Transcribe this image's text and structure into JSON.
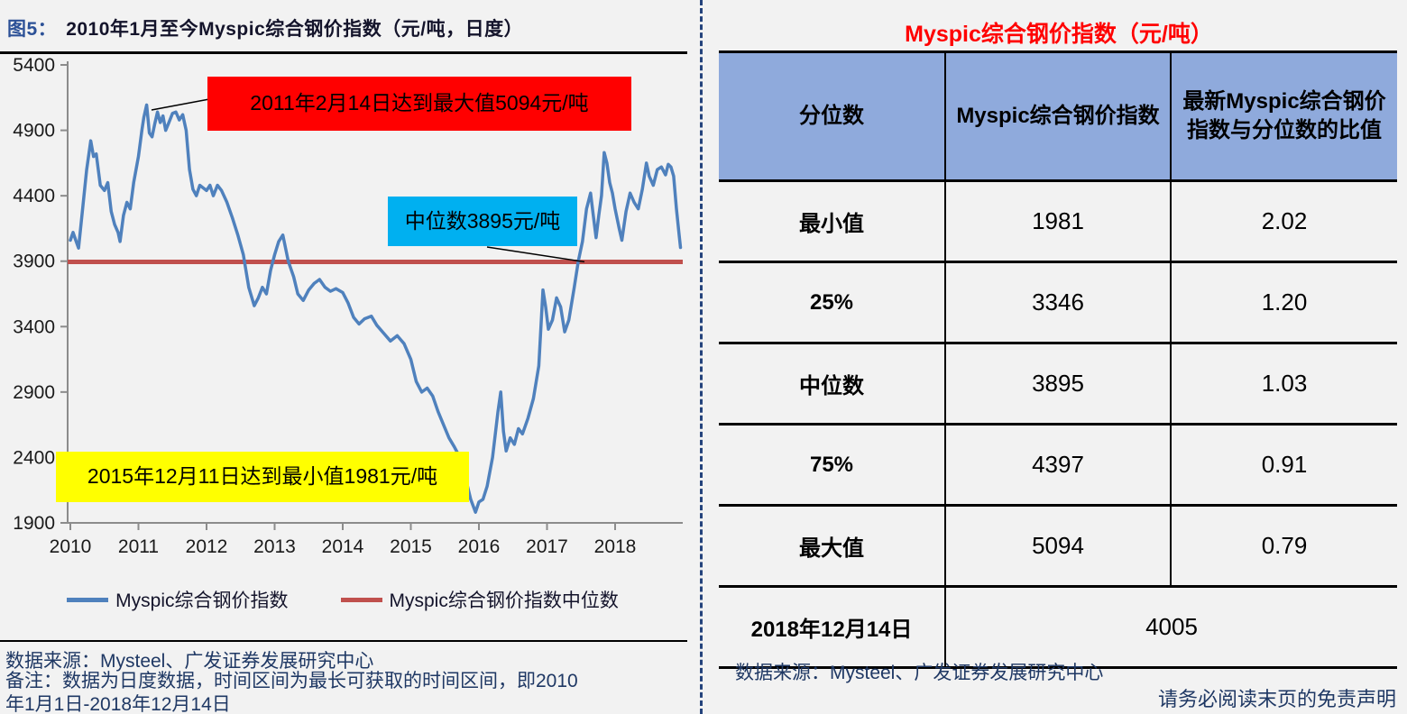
{
  "left_panel": {
    "figure_label": "图5：",
    "title": "2010年1月至今Myspic综合钢价指数（元/吨，日度）",
    "annotations": {
      "max": "2011年2月14日达到最大值5094元/吨",
      "median": "中位数3895元/吨",
      "min": "2015年12月11日达到最小值1981元/吨"
    },
    "legend": [
      {
        "label": "Myspic综合钢价指数",
        "color": "#4F81BD"
      },
      {
        "label": "Myspic综合钢价指数中位数",
        "color": "#C0504D"
      }
    ],
    "source": "数据来源：Mysteel、广发证券发展研究中心",
    "note": "备注：数据为日度数据，时间区间为最长可获取的时间区间，即2010年1月1日-2018年12月14日"
  },
  "chart_data": {
    "type": "line",
    "title": "2010年1月至今Myspic综合钢价指数（元/吨，日度）",
    "xlabel": "",
    "ylabel": "",
    "ylim": [
      1900,
      5400
    ],
    "y_ticks": [
      5400,
      4900,
      4400,
      3900,
      3400,
      2900,
      2400,
      1900
    ],
    "x_ticks": [
      2010,
      2011,
      2012,
      2013,
      2014,
      2015,
      2016,
      2017,
      2018
    ],
    "grid": false,
    "legend_position": "bottom",
    "median_value": 3895,
    "max_point": {
      "date": "2011-02-14",
      "value": 5094
    },
    "min_point": {
      "date": "2015-12-11",
      "value": 1981
    },
    "latest_point": {
      "date": "2018-12-14",
      "value": 4005
    },
    "series": [
      {
        "name": "Myspic综合钢价指数",
        "color": "#4F81BD",
        "points": [
          [
            2010.0,
            4060
          ],
          [
            2010.04,
            4120
          ],
          [
            2010.08,
            4060
          ],
          [
            2010.12,
            4000
          ],
          [
            2010.18,
            4300
          ],
          [
            2010.24,
            4600
          ],
          [
            2010.3,
            4820
          ],
          [
            2010.34,
            4700
          ],
          [
            2010.38,
            4720
          ],
          [
            2010.44,
            4480
          ],
          [
            2010.5,
            4440
          ],
          [
            2010.55,
            4500
          ],
          [
            2010.6,
            4280
          ],
          [
            2010.65,
            4180
          ],
          [
            2010.7,
            4120
          ],
          [
            2010.73,
            4050
          ],
          [
            2010.78,
            4250
          ],
          [
            2010.83,
            4350
          ],
          [
            2010.88,
            4300
          ],
          [
            2010.93,
            4500
          ],
          [
            2011.0,
            4700
          ],
          [
            2011.05,
            4900
          ],
          [
            2011.08,
            5000
          ],
          [
            2011.12,
            5094
          ],
          [
            2011.16,
            4880
          ],
          [
            2011.2,
            4850
          ],
          [
            2011.24,
            4950
          ],
          [
            2011.28,
            5040
          ],
          [
            2011.32,
            4960
          ],
          [
            2011.36,
            5010
          ],
          [
            2011.4,
            4900
          ],
          [
            2011.44,
            4950
          ],
          [
            2011.5,
            5030
          ],
          [
            2011.55,
            5040
          ],
          [
            2011.6,
            4980
          ],
          [
            2011.65,
            5020
          ],
          [
            2011.7,
            4900
          ],
          [
            2011.75,
            4600
          ],
          [
            2011.8,
            4450
          ],
          [
            2011.85,
            4400
          ],
          [
            2011.9,
            4480
          ],
          [
            2011.95,
            4460
          ],
          [
            2012.0,
            4440
          ],
          [
            2012.05,
            4480
          ],
          [
            2012.1,
            4400
          ],
          [
            2012.16,
            4480
          ],
          [
            2012.22,
            4440
          ],
          [
            2012.3,
            4350
          ],
          [
            2012.38,
            4230
          ],
          [
            2012.46,
            4100
          ],
          [
            2012.54,
            3950
          ],
          [
            2012.62,
            3700
          ],
          [
            2012.7,
            3560
          ],
          [
            2012.76,
            3620
          ],
          [
            2012.82,
            3700
          ],
          [
            2012.88,
            3650
          ],
          [
            2012.94,
            3830
          ],
          [
            2013.0,
            3950
          ],
          [
            2013.06,
            4050
          ],
          [
            2013.12,
            4100
          ],
          [
            2013.2,
            3900
          ],
          [
            2013.28,
            3780
          ],
          [
            2013.34,
            3650
          ],
          [
            2013.42,
            3600
          ],
          [
            2013.5,
            3680
          ],
          [
            2013.58,
            3730
          ],
          [
            2013.66,
            3760
          ],
          [
            2013.74,
            3700
          ],
          [
            2013.82,
            3670
          ],
          [
            2013.9,
            3690
          ],
          [
            2014.0,
            3660
          ],
          [
            2014.08,
            3580
          ],
          [
            2014.16,
            3470
          ],
          [
            2014.24,
            3420
          ],
          [
            2014.32,
            3460
          ],
          [
            2014.42,
            3480
          ],
          [
            2014.5,
            3410
          ],
          [
            2014.6,
            3350
          ],
          [
            2014.7,
            3290
          ],
          [
            2014.8,
            3330
          ],
          [
            2014.9,
            3270
          ],
          [
            2015.0,
            3150
          ],
          [
            2015.08,
            2980
          ],
          [
            2015.16,
            2900
          ],
          [
            2015.24,
            2930
          ],
          [
            2015.32,
            2870
          ],
          [
            2015.4,
            2750
          ],
          [
            2015.48,
            2650
          ],
          [
            2015.56,
            2550
          ],
          [
            2015.64,
            2480
          ],
          [
            2015.72,
            2400
          ],
          [
            2015.8,
            2250
          ],
          [
            2015.88,
            2080
          ],
          [
            2015.95,
            1981
          ],
          [
            2016.0,
            2060
          ],
          [
            2016.06,
            2080
          ],
          [
            2016.12,
            2180
          ],
          [
            2016.2,
            2400
          ],
          [
            2016.28,
            2750
          ],
          [
            2016.32,
            2900
          ],
          [
            2016.36,
            2600
          ],
          [
            2016.4,
            2450
          ],
          [
            2016.46,
            2550
          ],
          [
            2016.52,
            2500
          ],
          [
            2016.58,
            2620
          ],
          [
            2016.64,
            2580
          ],
          [
            2016.72,
            2700
          ],
          [
            2016.8,
            2850
          ],
          [
            2016.88,
            3100
          ],
          [
            2016.94,
            3680
          ],
          [
            2016.98,
            3550
          ],
          [
            2017.02,
            3380
          ],
          [
            2017.08,
            3450
          ],
          [
            2017.14,
            3620
          ],
          [
            2017.2,
            3550
          ],
          [
            2017.26,
            3360
          ],
          [
            2017.32,
            3450
          ],
          [
            2017.4,
            3700
          ],
          [
            2017.46,
            3900
          ],
          [
            2017.52,
            4050
          ],
          [
            2017.58,
            4300
          ],
          [
            2017.64,
            4420
          ],
          [
            2017.68,
            4250
          ],
          [
            2017.72,
            4080
          ],
          [
            2017.76,
            4250
          ],
          [
            2017.8,
            4400
          ],
          [
            2017.84,
            4730
          ],
          [
            2017.88,
            4650
          ],
          [
            2017.92,
            4500
          ],
          [
            2017.96,
            4420
          ],
          [
            2018.0,
            4300
          ],
          [
            2018.06,
            4150
          ],
          [
            2018.1,
            4060
          ],
          [
            2018.16,
            4280
          ],
          [
            2018.22,
            4420
          ],
          [
            2018.28,
            4350
          ],
          [
            2018.34,
            4300
          ],
          [
            2018.4,
            4450
          ],
          [
            2018.46,
            4650
          ],
          [
            2018.5,
            4550
          ],
          [
            2018.56,
            4480
          ],
          [
            2018.62,
            4600
          ],
          [
            2018.68,
            4620
          ],
          [
            2018.74,
            4560
          ],
          [
            2018.78,
            4640
          ],
          [
            2018.82,
            4620
          ],
          [
            2018.86,
            4550
          ],
          [
            2018.9,
            4300
          ],
          [
            2018.94,
            4100
          ],
          [
            2018.96,
            4005
          ]
        ]
      },
      {
        "name": "Myspic综合钢价指数中位数",
        "color": "#C0504D",
        "value": 3895
      }
    ]
  },
  "right_panel": {
    "title": "Myspic综合钢价指数（元/吨）",
    "table": {
      "headers": [
        "分位数",
        "Myspic综合钢价指数",
        "最新Myspic综合钢价指数与分位数的比值"
      ],
      "rows": [
        [
          "最小值",
          "1981",
          "2.02"
        ],
        [
          "25%",
          "3346",
          "1.20"
        ],
        [
          "中位数",
          "3895",
          "1.03"
        ],
        [
          "75%",
          "4397",
          "0.91"
        ],
        [
          "最大值",
          "5094",
          "0.79"
        ]
      ],
      "footer_row": {
        "label": "2018年12月14日",
        "value": "4005"
      }
    },
    "source": "数据来源：Mysteel、广发证券发展研究中心",
    "disclaimer": "请务必阅读末页的免责声明"
  },
  "colors": {
    "series_blue": "#4F81BD",
    "median_red": "#C0504D",
    "annotation_max_bg": "#FF0000",
    "annotation_median_bg": "#00B0F0",
    "annotation_min_bg": "#FFFF00",
    "table_header_bg": "#8FAADC",
    "right_title_red": "#FF0000",
    "figure_label_blue": "#2C5197",
    "source_text_navy": "#1F3864",
    "background": "#F2F2F2"
  }
}
